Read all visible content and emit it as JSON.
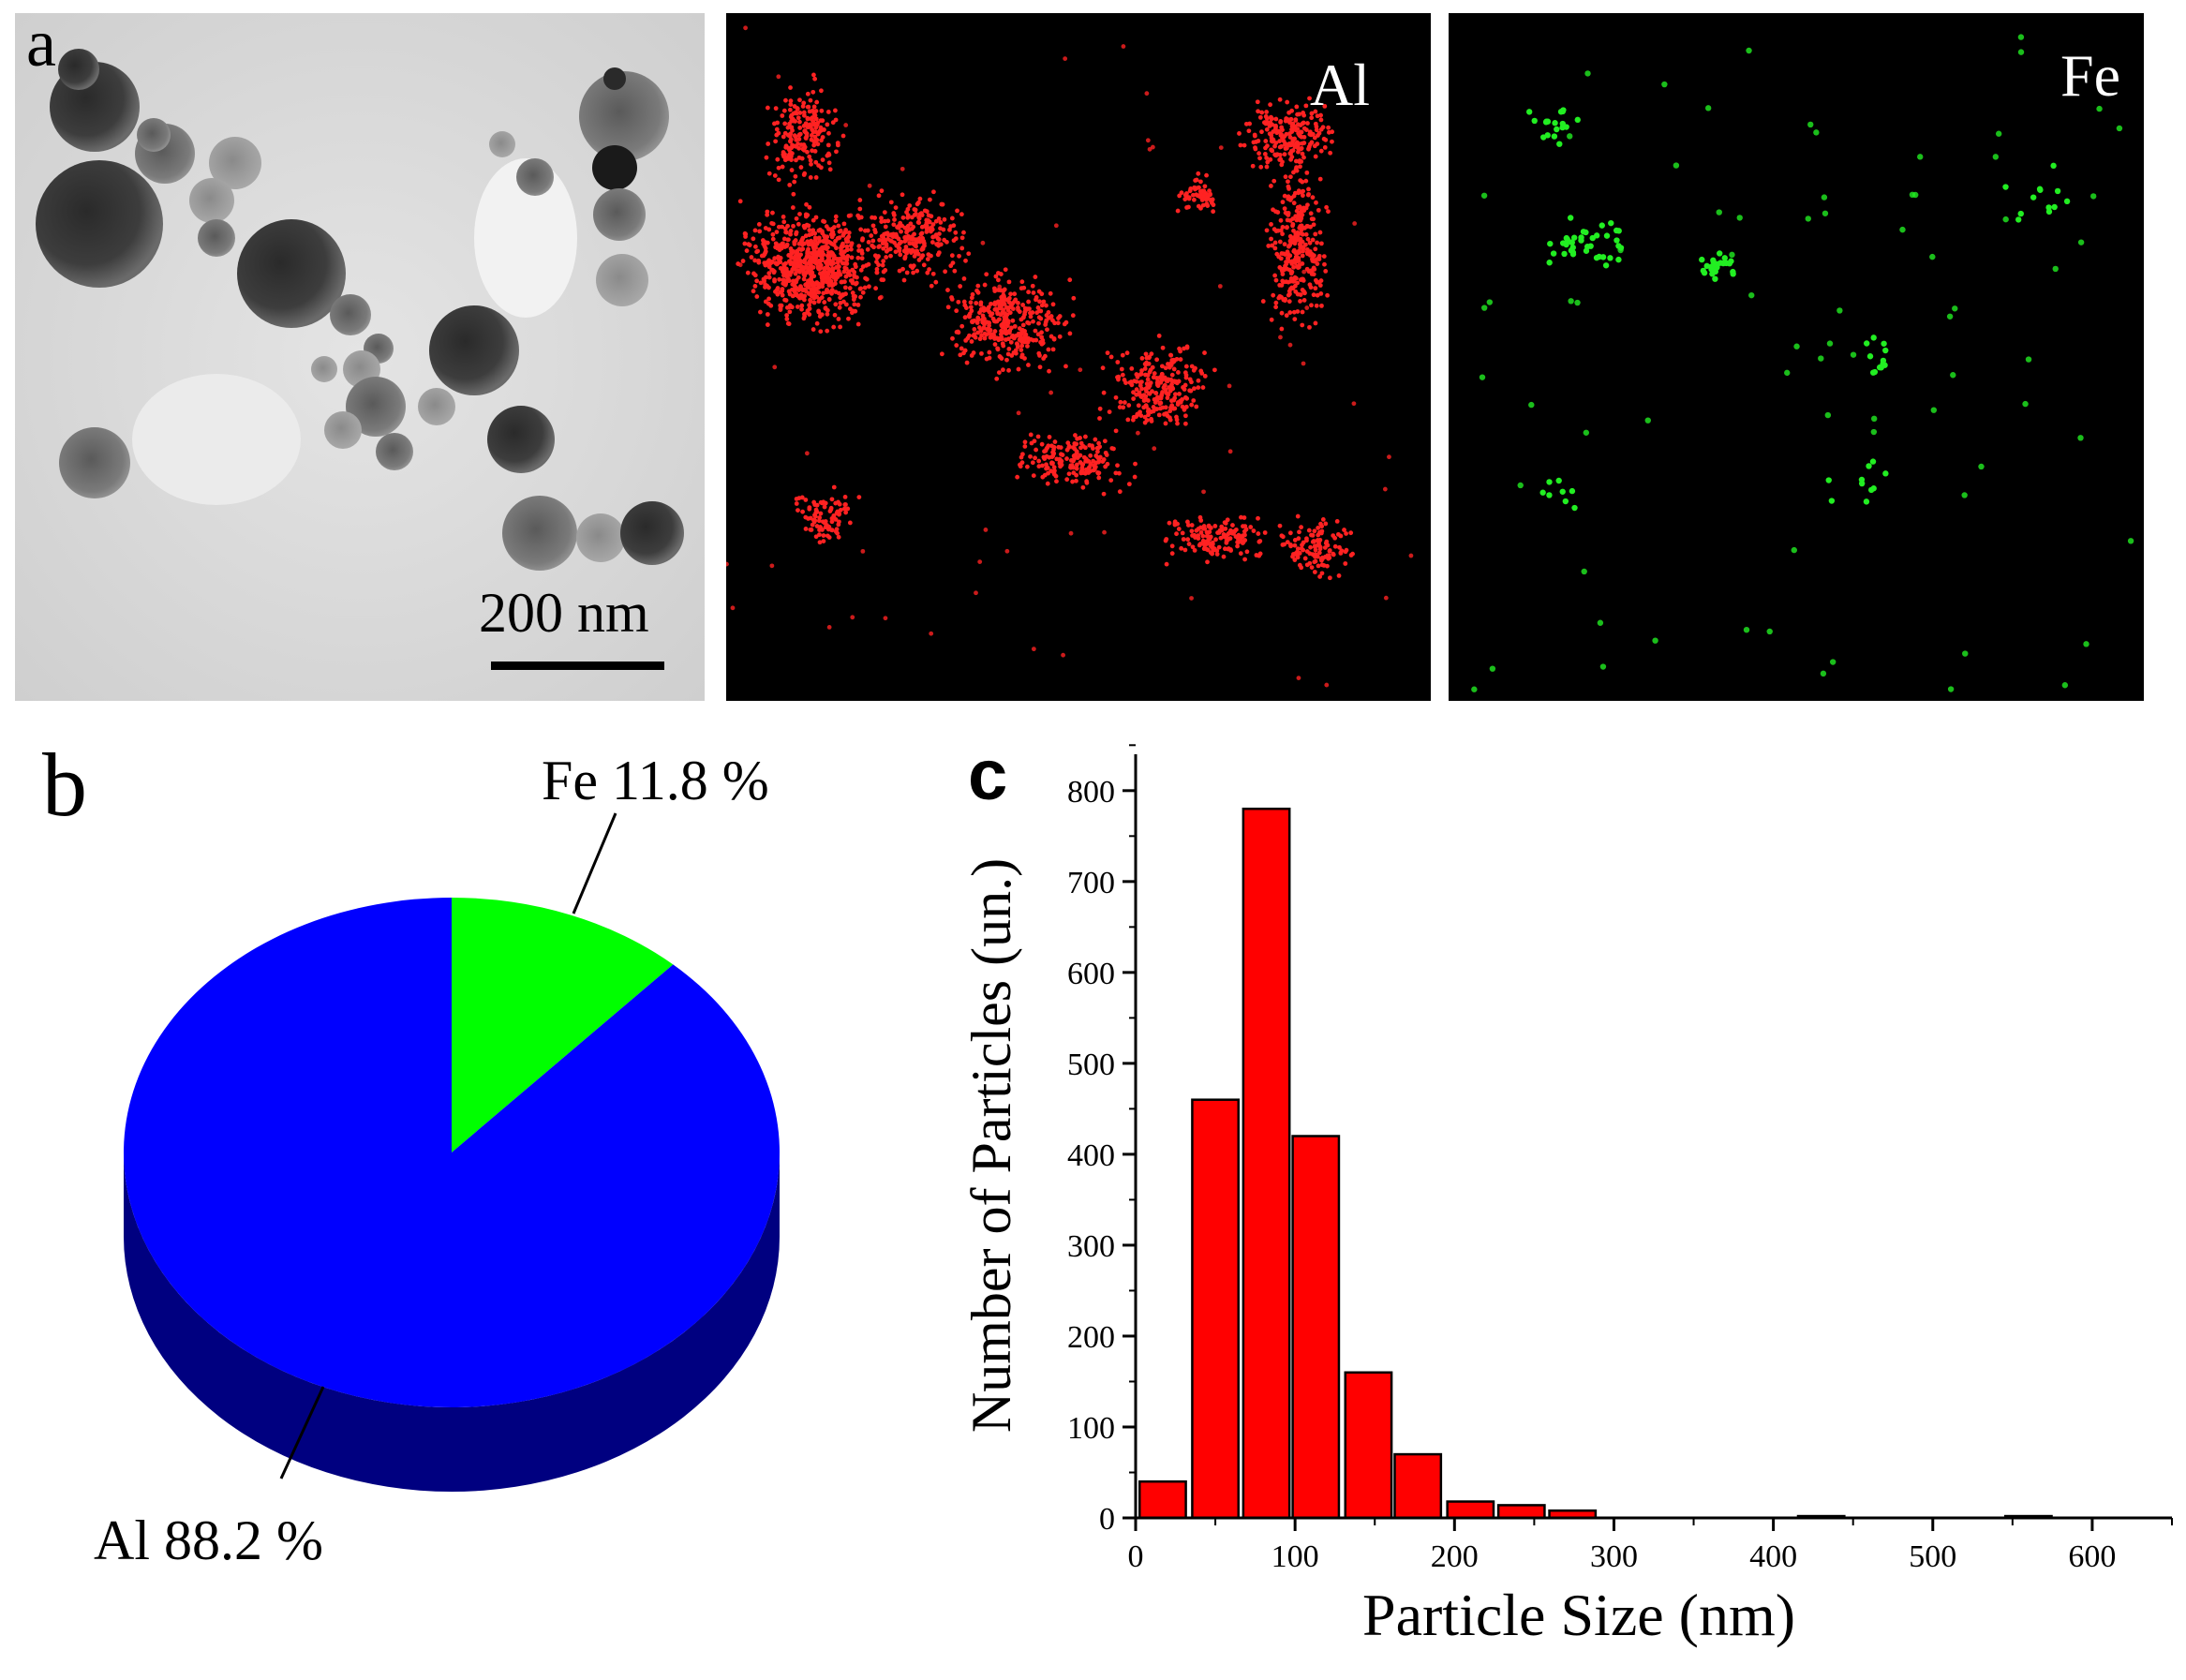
{
  "panel_a": {
    "letter": "a",
    "scale_bar_label": "200 nm",
    "maps": [
      {
        "label": "Al",
        "color": "#ff2222"
      },
      {
        "label": "Fe",
        "color": "#22ee22"
      }
    ]
  },
  "chart_data": [
    {
      "type": "pie",
      "panel": "b",
      "slices": [
        {
          "label": "Fe 11.8 %",
          "value": 11.8,
          "color": "#00ff00"
        },
        {
          "label": "Al 88.2 %",
          "value": 88.2,
          "color": "#0000ff"
        }
      ],
      "style": "3d"
    },
    {
      "type": "bar",
      "panel": "c",
      "xlabel": "Particle Size (nm)",
      "ylabel": "Number of Particles (un.)",
      "xlim": [
        0,
        650
      ],
      "ylim": [
        0,
        840
      ],
      "xticks": [
        0,
        100,
        200,
        300,
        400,
        500,
        600
      ],
      "yticks": [
        0,
        100,
        200,
        300,
        400,
        500,
        600,
        700,
        800
      ],
      "bin_width": 33,
      "bars": [
        {
          "x": 17,
          "value": 40
        },
        {
          "x": 50,
          "value": 460
        },
        {
          "x": 82,
          "value": 780
        },
        {
          "x": 113,
          "value": 420
        },
        {
          "x": 146,
          "value": 160
        },
        {
          "x": 177,
          "value": 70
        },
        {
          "x": 210,
          "value": 18
        },
        {
          "x": 242,
          "value": 14
        },
        {
          "x": 274,
          "value": 8
        },
        {
          "x": 430,
          "value": 2
        },
        {
          "x": 560,
          "value": 2
        }
      ],
      "bar_color": "#ff0000"
    }
  ]
}
